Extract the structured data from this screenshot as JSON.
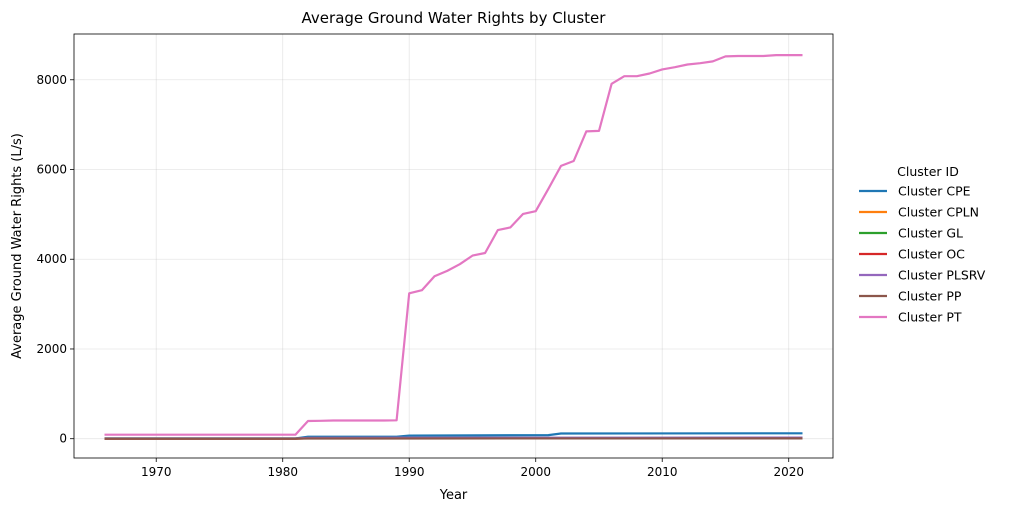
{
  "chart_data": {
    "type": "line",
    "title": "Average Ground Water Rights by Cluster",
    "xlabel": "Year",
    "ylabel": "Average Ground Water Rights (L/s)",
    "xlim": [
      1963.5,
      2023.5
    ],
    "ylim": [
      -430,
      9020
    ],
    "xticks": [
      1970,
      1980,
      1990,
      2000,
      2010,
      2020
    ],
    "yticks": [
      0,
      2000,
      4000,
      6000,
      8000
    ],
    "grid": true,
    "legend": {
      "title": "Cluster ID",
      "placement": "right"
    },
    "series": [
      {
        "name": "Cluster CPE",
        "color": "#1f77b4",
        "points": [
          [
            1966,
            5
          ],
          [
            1981,
            5
          ],
          [
            1982,
            45
          ],
          [
            1989,
            45
          ],
          [
            1990,
            70
          ],
          [
            2001,
            80
          ],
          [
            2002,
            115
          ],
          [
            2021,
            120
          ]
        ]
      },
      {
        "name": "Cluster CPLN",
        "color": "#ff7f0e",
        "points": [
          [
            1966,
            2
          ],
          [
            1981,
            2
          ],
          [
            1982,
            10
          ],
          [
            2021,
            12
          ]
        ]
      },
      {
        "name": "Cluster GL",
        "color": "#2ca02c",
        "points": [
          [
            1966,
            4
          ],
          [
            1981,
            4
          ],
          [
            1982,
            15
          ],
          [
            2021,
            18
          ]
        ]
      },
      {
        "name": "Cluster OC",
        "color": "#d62728",
        "points": [
          [
            1966,
            3
          ],
          [
            1981,
            3
          ],
          [
            1982,
            8
          ],
          [
            2021,
            10
          ]
        ]
      },
      {
        "name": "Cluster PLSRV",
        "color": "#9467bd",
        "points": [
          [
            1966,
            5
          ],
          [
            1981,
            5
          ],
          [
            1982,
            20
          ],
          [
            2021,
            25
          ]
        ]
      },
      {
        "name": "Cluster PP",
        "color": "#8c564b",
        "points": [
          [
            1966,
            1
          ],
          [
            1981,
            1
          ],
          [
            1982,
            4
          ],
          [
            2021,
            6
          ]
        ]
      },
      {
        "name": "Cluster PT",
        "color": "#e377c2",
        "points": [
          [
            1966,
            90
          ],
          [
            1981,
            90
          ],
          [
            1982,
            395
          ],
          [
            1983,
            400
          ],
          [
            1984,
            405
          ],
          [
            1985,
            405
          ],
          [
            1986,
            405
          ],
          [
            1987,
            405
          ],
          [
            1988,
            405
          ],
          [
            1989,
            410
          ],
          [
            1990,
            3240
          ],
          [
            1991,
            3310
          ],
          [
            1992,
            3620
          ],
          [
            1993,
            3740
          ],
          [
            1994,
            3890
          ],
          [
            1995,
            4080
          ],
          [
            1996,
            4140
          ],
          [
            1997,
            4650
          ],
          [
            1998,
            4710
          ],
          [
            1999,
            5010
          ],
          [
            2000,
            5070
          ],
          [
            2001,
            5570
          ],
          [
            2002,
            6080
          ],
          [
            2003,
            6190
          ],
          [
            2004,
            6850
          ],
          [
            2005,
            6860
          ],
          [
            2006,
            7910
          ],
          [
            2007,
            8080
          ],
          [
            2008,
            8080
          ],
          [
            2009,
            8140
          ],
          [
            2010,
            8230
          ],
          [
            2011,
            8280
          ],
          [
            2012,
            8340
          ],
          [
            2013,
            8370
          ],
          [
            2014,
            8410
          ],
          [
            2015,
            8520
          ],
          [
            2016,
            8530
          ],
          [
            2017,
            8530
          ],
          [
            2018,
            8530
          ],
          [
            2019,
            8550
          ],
          [
            2020,
            8550
          ],
          [
            2021,
            8550
          ]
        ]
      }
    ]
  }
}
